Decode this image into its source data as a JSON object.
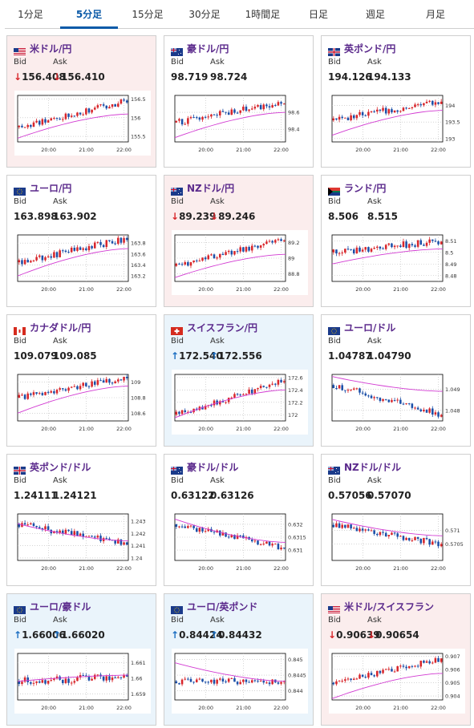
{
  "tabs": [
    "1分足",
    "5分足",
    "15分足",
    "30分足",
    "1時間足",
    "日足",
    "週足",
    "月足"
  ],
  "active_tab": "5分足",
  "labels": {
    "bid": "Bid",
    "ask": "Ask"
  },
  "colors": {
    "up_candle": "#d8262b",
    "down_candle": "#1b4fa8",
    "ma_line": "#d23ad2",
    "title": "#5b2a8c",
    "down_arrow": "#d8262b",
    "up_arrow": "#1b6ec2"
  },
  "cards": [
    {
      "id": "usdjpy",
      "title": "米ドル/円",
      "flag": "us-flag",
      "bid": "156.408",
      "ask": "156.410",
      "direction": "down",
      "chart_data": {
        "type": "candlestick",
        "x_ticks": [
          "20:00",
          "21:00",
          "22:00"
        ],
        "y_ticks": [
          "156.5",
          "156",
          "155.5"
        ],
        "ylim": [
          155.35,
          156.6
        ],
        "start": 155.75,
        "end": 156.45,
        "noise": 0.08,
        "ma": [
          155.45,
          156.1
        ]
      }
    },
    {
      "id": "audjpy",
      "title": "豪ドル/円",
      "flag": "au-flag",
      "bid": "98.719",
      "ask": "98.724",
      "direction": "none",
      "chart_data": {
        "type": "candlestick",
        "x_ticks": [
          "20:00",
          "21:00",
          "22:00"
        ],
        "y_ticks": [
          "98.6",
          "98.4"
        ],
        "ylim": [
          98.25,
          98.8
        ],
        "start": 98.48,
        "end": 98.72,
        "noise": 0.04,
        "ma": [
          98.3,
          98.6
        ]
      }
    },
    {
      "id": "gbpjpy",
      "title": "英ポンド/円",
      "flag": "gb-flag",
      "bid": "194.126",
      "ask": "194.133",
      "direction": "none",
      "chart_data": {
        "type": "candlestick",
        "x_ticks": [
          "20:00",
          "21:00",
          "22:00"
        ],
        "y_ticks": [
          "194",
          "193.5",
          "193"
        ],
        "ylim": [
          192.9,
          194.3
        ],
        "start": 193.55,
        "end": 194.15,
        "noise": 0.1,
        "ma": [
          193.1,
          193.85
        ]
      }
    },
    {
      "id": "eurjpy",
      "title": "ユーロ/円",
      "flag": "eu-flag",
      "bid": "163.898",
      "ask": "163.902",
      "direction": "none",
      "chart_data": {
        "type": "candlestick",
        "x_ticks": [
          "20:00",
          "21:00",
          "22:00"
        ],
        "y_ticks": [
          "163.8",
          "163.6",
          "163.4",
          "163.2"
        ],
        "ylim": [
          163.1,
          163.95
        ],
        "start": 163.45,
        "end": 163.88,
        "noise": 0.06,
        "ma": [
          163.2,
          163.7
        ]
      }
    },
    {
      "id": "nzdjpy",
      "title": "NZドル/円",
      "flag": "nz-flag",
      "bid": "89.239",
      "ask": "89.246",
      "direction": "down",
      "chart_data": {
        "type": "candlestick",
        "x_ticks": [
          "20:00",
          "21:00",
          "22:00"
        ],
        "y_ticks": [
          "89.2",
          "89",
          "88.8"
        ],
        "ylim": [
          88.7,
          89.3
        ],
        "start": 88.9,
        "end": 89.24,
        "noise": 0.04,
        "ma": [
          88.75,
          89.05
        ]
      }
    },
    {
      "id": "zarjpy",
      "title": "ランド/円",
      "flag": "za-flag",
      "bid": "8.506",
      "ask": "8.515",
      "direction": "none",
      "chart_data": {
        "type": "candlestick",
        "x_ticks": [
          "20:00",
          "21:00",
          "22:00"
        ],
        "y_ticks": [
          "8.51",
          "8.5",
          "8.49",
          "8.48"
        ],
        "ylim": [
          8.475,
          8.515
        ],
        "start": 8.5,
        "end": 8.51,
        "noise": 0.003,
        "ma": [
          8.49,
          8.503
        ]
      }
    },
    {
      "id": "cadjpy",
      "title": "カナダドル/円",
      "flag": "ca-flag",
      "bid": "109.079",
      "ask": "109.085",
      "direction": "none",
      "chart_data": {
        "type": "candlestick",
        "x_ticks": [
          "20:00",
          "21:00",
          "22:00"
        ],
        "y_ticks": [
          "109",
          "108.8",
          "108.6"
        ],
        "ylim": [
          108.5,
          109.1
        ],
        "start": 108.8,
        "end": 109.06,
        "noise": 0.04,
        "ma": [
          108.6,
          108.95
        ]
      }
    },
    {
      "id": "chfjpy",
      "title": "スイスフラン/円",
      "flag": "ch-flag",
      "bid": "172.540",
      "ask": "172.556",
      "direction": "up",
      "chart_data": {
        "type": "candlestick",
        "x_ticks": [
          "20:00",
          "21:00",
          "22:00"
        ],
        "y_ticks": [
          "172.6",
          "172.4",
          "172.2",
          "172"
        ],
        "ylim": [
          171.9,
          172.65
        ],
        "start": 172.0,
        "end": 172.55,
        "noise": 0.05,
        "ma": [
          171.95,
          172.4
        ]
      }
    },
    {
      "id": "eurusd",
      "title": "ユーロ/ドル",
      "flag": "eu-flag",
      "bid": "1.04787",
      "ask": "1.04790",
      "direction": "none",
      "chart_data": {
        "type": "candlestick",
        "x_ticks": [
          "20:00",
          "21:00",
          "22:00"
        ],
        "y_ticks": [
          "1.049",
          "1.048"
        ],
        "ylim": [
          1.0475,
          1.0497
        ],
        "start": 1.0492,
        "end": 1.0478,
        "noise": 0.00015,
        "ma": [
          1.0496,
          1.0489
        ]
      }
    },
    {
      "id": "gbpusd",
      "title": "英ポンド/ドル",
      "flag": "gb-flag",
      "bid": "1.24111",
      "ask": "1.24121",
      "direction": "none",
      "chart_data": {
        "type": "candlestick",
        "x_ticks": [
          "20:00",
          "21:00",
          "22:00"
        ],
        "y_ticks": [
          "1.243",
          "1.242",
          "1.241",
          "1.24"
        ],
        "ylim": [
          1.2398,
          1.2436
        ],
        "start": 1.2428,
        "end": 1.2411,
        "noise": 0.0003,
        "ma": [
          1.2428,
          1.2414
        ]
      }
    },
    {
      "id": "audusd",
      "title": "豪ドル/ドル",
      "flag": "au-flag",
      "bid": "0.63122",
      "ask": "0.63126",
      "direction": "none",
      "chart_data": {
        "type": "candlestick",
        "x_ticks": [
          "20:00",
          "21:00",
          "22:00"
        ],
        "y_ticks": [
          "0.632",
          "0.6315",
          "0.631"
        ],
        "ylim": [
          0.6306,
          0.6324
        ],
        "start": 0.632,
        "end": 0.6311,
        "noise": 0.00012,
        "ma": [
          0.6322,
          0.6313
        ]
      }
    },
    {
      "id": "nzdusd",
      "title": "NZドル/ドル",
      "flag": "nz-flag",
      "bid": "0.57056",
      "ask": "0.57070",
      "direction": "none",
      "chart_data": {
        "type": "candlestick",
        "x_ticks": [
          "20:00",
          "21:00",
          "22:00"
        ],
        "y_ticks": [
          "0.571",
          "0.5705"
        ],
        "ylim": [
          0.5699,
          0.5716
        ],
        "start": 0.5712,
        "end": 0.5705,
        "noise": 0.00011,
        "ma": [
          0.5714,
          0.5708
        ]
      }
    },
    {
      "id": "euraud",
      "title": "ユーロ/豪ドル",
      "flag": "eu-flag",
      "bid": "1.66006",
      "ask": "1.66020",
      "direction": "up",
      "chart_data": {
        "type": "candlestick",
        "x_ticks": [
          "20:00",
          "21:00",
          "22:00"
        ],
        "y_ticks": [
          "1.661",
          "1.66",
          "1.659"
        ],
        "ylim": [
          1.6586,
          1.6616
        ],
        "start": 1.6598,
        "end": 1.6601,
        "noise": 0.00025,
        "ma": [
          1.6598,
          1.6602
        ]
      }
    },
    {
      "id": "eurgbp",
      "title": "ユーロ/英ポンド",
      "flag": "eu-flag",
      "bid": "0.84424",
      "ask": "0.84432",
      "direction": "up",
      "chart_data": {
        "type": "candlestick",
        "x_ticks": [
          "20:00",
          "21:00",
          "22:00"
        ],
        "y_ticks": [
          "0.845",
          "0.8445",
          "0.844"
        ],
        "ylim": [
          0.8437,
          0.8452
        ],
        "start": 0.8443,
        "end": 0.8443,
        "noise": 0.0001,
        "ma": [
          0.8449,
          0.8443
        ]
      }
    },
    {
      "id": "usdchf",
      "title": "米ドル/スイスフラン",
      "flag": "us-ch-flag",
      "bid": "0.90639",
      "ask": "0.90654",
      "direction": "down",
      "chart_data": {
        "type": "candlestick",
        "x_ticks": [
          "20:00",
          "21:00",
          "22:00"
        ],
        "y_ticks": [
          "0.907",
          "0.906",
          "0.905",
          "0.904"
        ],
        "ylim": [
          0.9037,
          0.9072
        ],
        "start": 0.905,
        "end": 0.9068,
        "noise": 0.00022,
        "ma": [
          0.9038,
          0.9057
        ]
      }
    }
  ]
}
